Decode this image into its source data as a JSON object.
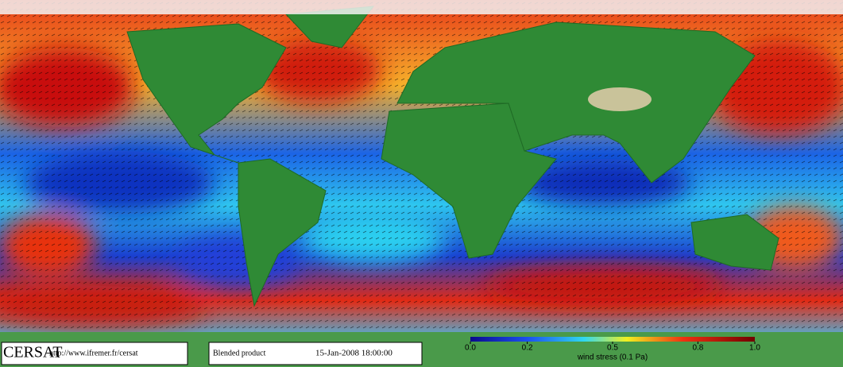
{
  "footer": {
    "logo": "CERSAT",
    "url": "http://www.ifremer.fr/cersat",
    "product": "Blended product",
    "date": "15-Jan-2008 18:00:00"
  },
  "colorbar": {
    "label": "wind stress (0.1 Pa)",
    "range": [
      0,
      1
    ],
    "ticks": [
      {
        "value": 0,
        "label": "0.0"
      },
      0.2,
      0.5,
      0.8,
      {
        "value": 1,
        "label": "1.0"
      }
    ]
  }
}
